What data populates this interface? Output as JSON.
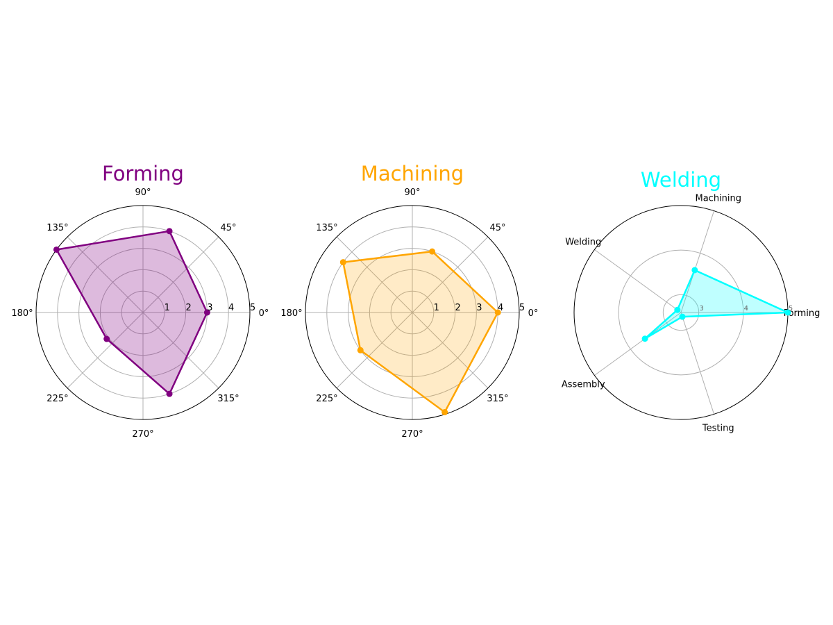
{
  "chart_data": [
    {
      "type": "radar",
      "title": "Forming",
      "color": "#800080",
      "theta_tick_labels": [
        "0°",
        "45°",
        "90°",
        "135°",
        "180°",
        "225°",
        "270°",
        "315°"
      ],
      "r_tick_labels": [
        "1",
        "2",
        "3",
        "4",
        "5"
      ],
      "r_ticks": [
        1,
        2,
        3,
        4,
        5
      ],
      "rlim": [
        0,
        5
      ],
      "grid": true,
      "series": [
        {
          "angles_deg": [
            0,
            72,
            144,
            216,
            288
          ],
          "values": [
            3.0,
            4.0,
            5.0,
            2.1,
            4.0
          ]
        }
      ]
    },
    {
      "type": "radar",
      "title": "Machining",
      "color": "#FFA500",
      "theta_tick_labels": [
        "0°",
        "45°",
        "90°",
        "135°",
        "180°",
        "225°",
        "270°",
        "315°"
      ],
      "r_tick_labels": [
        "1",
        "2",
        "3",
        "4",
        "5"
      ],
      "r_ticks": [
        1,
        2,
        3,
        4,
        5
      ],
      "rlim": [
        0,
        5
      ],
      "grid": true,
      "series": [
        {
          "angles_deg": [
            0,
            72,
            144,
            216,
            288
          ],
          "values": [
            4.0,
            3.0,
            4.0,
            3.0,
            4.9
          ]
        }
      ]
    },
    {
      "type": "radar",
      "title": "Welding",
      "color": "#00FFFF",
      "categories": [
        "Forming",
        "Machining",
        "Welding",
        "Assembly",
        "Testing"
      ],
      "r_tick_labels": [
        "3",
        "4",
        "5"
      ],
      "r_ticks": [
        3,
        4,
        5
      ],
      "rlim": [
        2.6,
        5
      ],
      "grid": true,
      "series": [
        {
          "angles_deg": [
            0,
            72,
            144,
            216,
            288
          ],
          "values": [
            5.0,
            3.6,
            2.7,
            3.6,
            2.7
          ]
        }
      ]
    }
  ]
}
